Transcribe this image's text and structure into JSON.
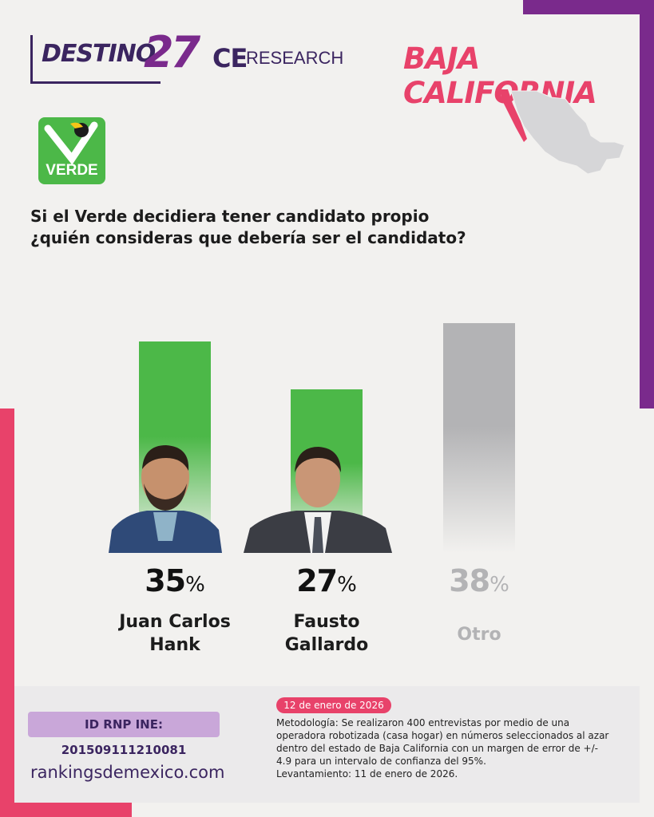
{
  "header": {
    "brand_destino": "DESTINO",
    "brand_27": "27",
    "brand_ce": "CE",
    "brand_research": "RESEARCH",
    "state_title": "BAJA CALIFORNIA"
  },
  "party": {
    "logo_text": "VERDE",
    "color": "#4cb848"
  },
  "question": "Si el Verde decidiera tener candidato propio ¿quién consideras que debería ser el candidato?",
  "colors": {
    "green": "#4cb848",
    "gray": "#b3b3b5",
    "purple": "#7a2a8c",
    "red": "#e8426a",
    "navy": "#3b2560"
  },
  "chart_data": {
    "type": "bar",
    "categories": [
      "Juan Carlos Hank",
      "Fausto Gallardo",
      "Otro"
    ],
    "values": [
      35,
      27,
      38
    ],
    "value_labels": [
      "35",
      "27",
      "38"
    ],
    "unit_symbol": "%",
    "name_lines": [
      [
        "Juan Carlos",
        "Hank"
      ],
      [
        "Fausto",
        "Gallardo"
      ],
      [
        "Otro"
      ]
    ],
    "bar_colors": [
      "#4cb848",
      "#4cb848",
      "#b3b3b5"
    ],
    "ylim": [
      0,
      38
    ],
    "grid": false
  },
  "footer": {
    "rnp": "ID RNP INE: 201509111210081",
    "website": "rankingsdemexico.com",
    "date": "12 de enero de 2026",
    "methodology": "Metodología: Se realizaron 400 entrevistas por medio de una operadora robotizada (casa hogar) en números seleccionados al azar dentro del estado de Baja California con un margen de error de +/- 4.9 para un intervalo de confianza del 95%.",
    "survey_date": "Levantamiento: 11 de enero de 2026."
  }
}
